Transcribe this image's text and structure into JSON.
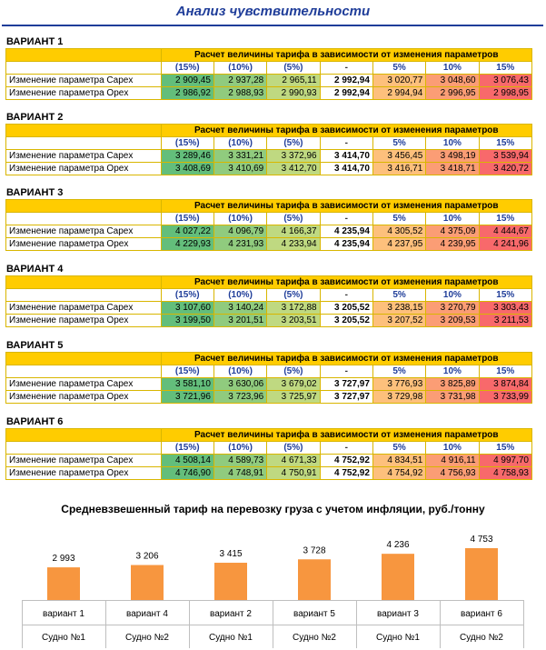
{
  "title": "Анализ чувствительности",
  "table_caption": "Расчет величины тарифа в зависимости от изменения параметров",
  "columns": [
    "(15%)",
    "(10%)",
    "(5%)",
    "-",
    "5%",
    "10%",
    "15%"
  ],
  "row_labels": [
    "Изменение параметра Capex",
    "Изменение параметра Opex"
  ],
  "colors": {
    "title": "#1f3d99",
    "caption_bg": "#ffcc00",
    "bar": "#f7963f"
  },
  "variants": [
    {
      "name": "ВАРИАНТ 1",
      "rows": [
        [
          "2 909,45",
          "2 937,28",
          "2 965,11",
          "2 992,94",
          "3 020,77",
          "3 048,60",
          "3 076,43"
        ],
        [
          "2 986,92",
          "2 988,93",
          "2 990,93",
          "2 992,94",
          "2 994,94",
          "2 996,95",
          "2 998,95"
        ]
      ]
    },
    {
      "name": "ВАРИАНТ 2",
      "rows": [
        [
          "3 289,46",
          "3 331,21",
          "3 372,96",
          "3 414,70",
          "3 456,45",
          "3 498,19",
          "3 539,94"
        ],
        [
          "3 408,69",
          "3 410,69",
          "3 412,70",
          "3 414,70",
          "3 416,71",
          "3 418,71",
          "3 420,72"
        ]
      ]
    },
    {
      "name": "ВАРИАНТ 3",
      "rows": [
        [
          "4 027,22",
          "4 096,79",
          "4 166,37",
          "4 235,94",
          "4 305,52",
          "4 375,09",
          "4 444,67"
        ],
        [
          "4 229,93",
          "4 231,93",
          "4 233,94",
          "4 235,94",
          "4 237,95",
          "4 239,95",
          "4 241,96"
        ]
      ]
    },
    {
      "name": "ВАРИАНТ 4",
      "rows": [
        [
          "3 107,60",
          "3 140,24",
          "3 172,88",
          "3 205,52",
          "3 238,15",
          "3 270,79",
          "3 303,43"
        ],
        [
          "3 199,50",
          "3 201,51",
          "3 203,51",
          "3 205,52",
          "3 207,52",
          "3 209,53",
          "3 211,53"
        ]
      ]
    },
    {
      "name": "ВАРИАНТ 5",
      "rows": [
        [
          "3 581,10",
          "3 630,06",
          "3 679,02",
          "3 727,97",
          "3 776,93",
          "3 825,89",
          "3 874,84"
        ],
        [
          "3 721,96",
          "3 723,96",
          "3 725,97",
          "3 727,97",
          "3 729,98",
          "3 731,98",
          "3 733,99"
        ]
      ]
    },
    {
      "name": "ВАРИАНТ 6",
      "rows": [
        [
          "4 508,14",
          "4 589,73",
          "4 671,33",
          "4 752,92",
          "4 834,51",
          "4 916,11",
          "4 997,70"
        ],
        [
          "4 746,90",
          "4 748,91",
          "4 750,91",
          "4 752,92",
          "4 754,92",
          "4 756,93",
          "4 758,93"
        ]
      ]
    }
  ],
  "chart_data": {
    "type": "bar",
    "title": "Средневзвешенный тариф на перевозку груза с учетом инфляции, руб./тонну",
    "categories": [
      "вариант 1",
      "вариант 4",
      "вариант 2",
      "вариант 5",
      "вариант 3",
      "вариант 6"
    ],
    "subcategories": [
      "Судно №1",
      "Судно №2",
      "Судно №1",
      "Судно №2",
      "Судно №1",
      "Судно №2"
    ],
    "values": [
      2993,
      3206,
      3415,
      3728,
      4236,
      4753
    ],
    "value_labels": [
      "2 993",
      "3 206",
      "3 415",
      "3 728",
      "4 236",
      "4 753"
    ],
    "grid": false,
    "legend": "none"
  }
}
